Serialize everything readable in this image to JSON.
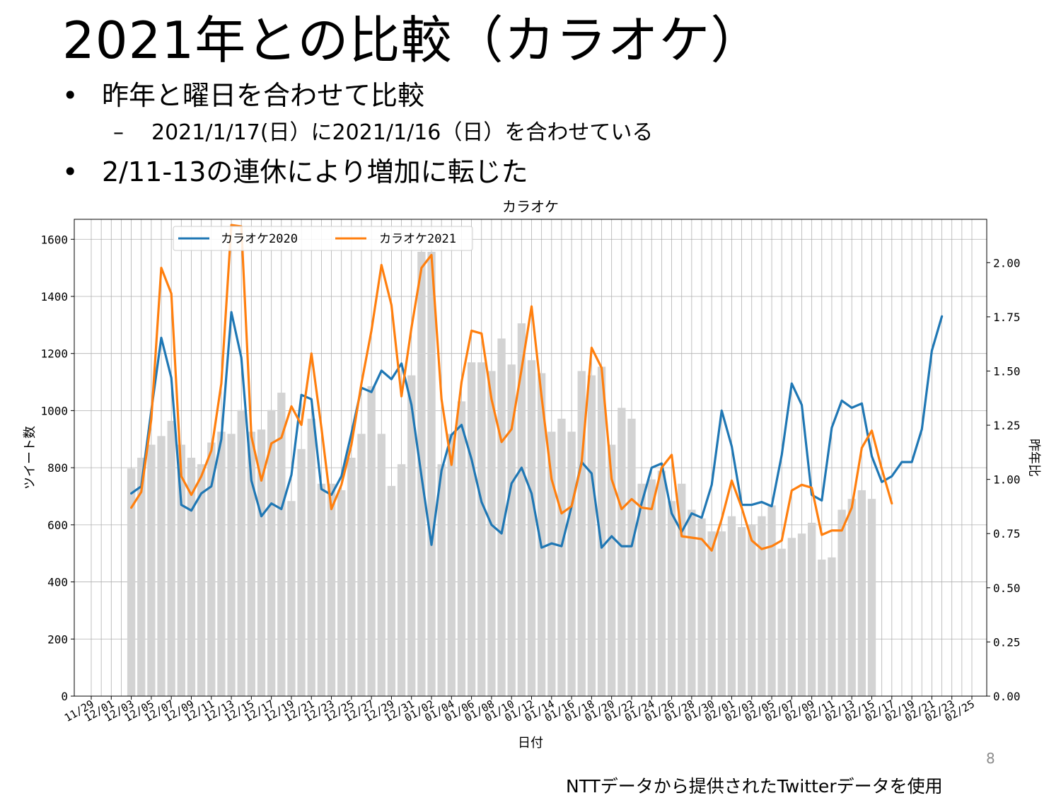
{
  "slide": {
    "title": "2021年との比較（カラオケ）",
    "bullets": [
      {
        "marker": "•",
        "text": "昨年と曜日を合わせて比較"
      },
      {
        "marker": "–",
        "text": "2021/1/17(日）に2021/1/16（日）を合わせている"
      },
      {
        "marker": "•",
        "text": "2/11-13の連休により増加に転じた"
      }
    ],
    "page_number": "8",
    "footer": "NTTデータから提供されたTwitterデータを使用"
  },
  "colors": {
    "series2020": "#1f77b4",
    "series2021": "#ff7f0e",
    "bars": "#d3d3d3",
    "grid": "#b0b0b0"
  },
  "chart_data": {
    "type": "bar+line",
    "title": "カラオケ",
    "xlabel": "日付",
    "ylabel": "ツイート数",
    "y2label": "昨年比",
    "ylim": [
      0,
      1670
    ],
    "y2lim": [
      0,
      2.2
    ],
    "yticks": [
      0,
      200,
      400,
      600,
      800,
      1000,
      1200,
      1400,
      1600
    ],
    "y2ticks": [
      "0.00",
      "0.25",
      "0.50",
      "0.75",
      "1.00",
      "1.25",
      "1.50",
      "1.75",
      "2.00"
    ],
    "grid": true,
    "legend_position": "top-left",
    "start_date": "2020-11-29",
    "num_days": 89,
    "x_tick_labels": [
      "11/29",
      "12/01",
      "12/03",
      "12/05",
      "12/07",
      "12/09",
      "12/11",
      "12/13",
      "12/15",
      "12/17",
      "12/19",
      "12/21",
      "12/23",
      "12/25",
      "12/27",
      "12/29",
      "12/31",
      "01/02",
      "01/04",
      "01/06",
      "01/08",
      "01/10",
      "01/12",
      "01/14",
      "01/16",
      "01/18",
      "01/20",
      "01/22",
      "01/24",
      "01/26",
      "01/28",
      "01/30",
      "02/01",
      "02/03",
      "02/05",
      "02/07",
      "02/09",
      "02/11",
      "02/13",
      "02/15",
      "02/17",
      "02/19",
      "02/21",
      "02/23",
      "02/25"
    ],
    "series": [
      {
        "name": "カラオケ2020",
        "axis": "left",
        "color": "#1f77b4",
        "start_index": 4,
        "values": [
          710,
          735,
          1000,
          1255,
          1115,
          670,
          650,
          710,
          735,
          900,
          1345,
          1185,
          755,
          630,
          675,
          655,
          775,
          1055,
          1040,
          725,
          705,
          770,
          920,
          1080,
          1065,
          1140,
          1110,
          1165,
          1020,
          770,
          530,
          790,
          915,
          950,
          830,
          680,
          600,
          570,
          745,
          800,
          710,
          520,
          535,
          525,
          665,
          820,
          780,
          520,
          560,
          525,
          525,
          675,
          800,
          815,
          640,
          575,
          640,
          625,
          740,
          1000,
          875,
          670,
          670,
          680,
          665,
          845,
          1095,
          1020,
          705,
          685,
          940,
          1035,
          1010,
          1025,
          840,
          750,
          770,
          820,
          820,
          935,
          1210,
          1330
        ]
      },
      {
        "name": "カラオケ2021",
        "axis": "left",
        "color": "#ff7f0e",
        "start_index": 4,
        "values": [
          660,
          715,
          970,
          1500,
          1410,
          770,
          705,
          770,
          860,
          1095,
          1650,
          1645,
          910,
          755,
          885,
          905,
          1015,
          950,
          1200,
          940,
          655,
          740,
          880,
          1095,
          1280,
          1510,
          1370,
          1050,
          1290,
          1500,
          1545,
          1040,
          810,
          1100,
          1280,
          1270,
          1040,
          890,
          935,
          1145,
          1365,
          1050,
          760,
          640,
          665,
          815,
          1220,
          1150,
          760,
          655,
          690,
          660,
          655,
          800,
          845,
          560,
          555,
          550,
          510,
          620,
          755,
          660,
          545,
          515,
          525,
          545,
          720,
          740,
          730,
          565,
          580,
          580,
          660,
          870,
          930,
          795,
          675
        ]
      },
      {
        "name": "昨年比",
        "axis": "right",
        "type": "bar",
        "color": "#d3d3d3",
        "start_index": 4,
        "values": [
          1.05,
          1.1,
          1.16,
          1.2,
          1.27,
          1.16,
          1.1,
          1.07,
          1.17,
          1.22,
          1.21,
          1.32,
          1.22,
          1.23,
          1.32,
          1.4,
          0.9,
          1.14,
          1.28,
          0.98,
          0.98,
          0.95,
          1.1,
          1.21,
          1.43,
          1.21,
          0.97,
          1.07,
          1.48,
          2.05,
          2.05,
          1.07,
          1.21,
          1.36,
          1.54,
          1.54,
          1.5,
          1.65,
          1.53,
          1.72,
          1.55,
          1.49,
          1.22,
          1.28,
          1.22,
          1.5,
          1.48,
          1.52,
          1.16,
          1.33,
          1.28,
          0.98,
          1.0,
          1.04,
          0.9,
          0.98,
          0.86,
          0.82,
          0.76,
          0.76,
          0.83,
          0.78,
          0.79,
          0.83,
          0.88,
          0.68,
          0.73,
          0.75,
          0.8,
          0.63,
          0.64,
          0.86,
          0.91,
          0.95,
          0.91
        ]
      }
    ]
  }
}
